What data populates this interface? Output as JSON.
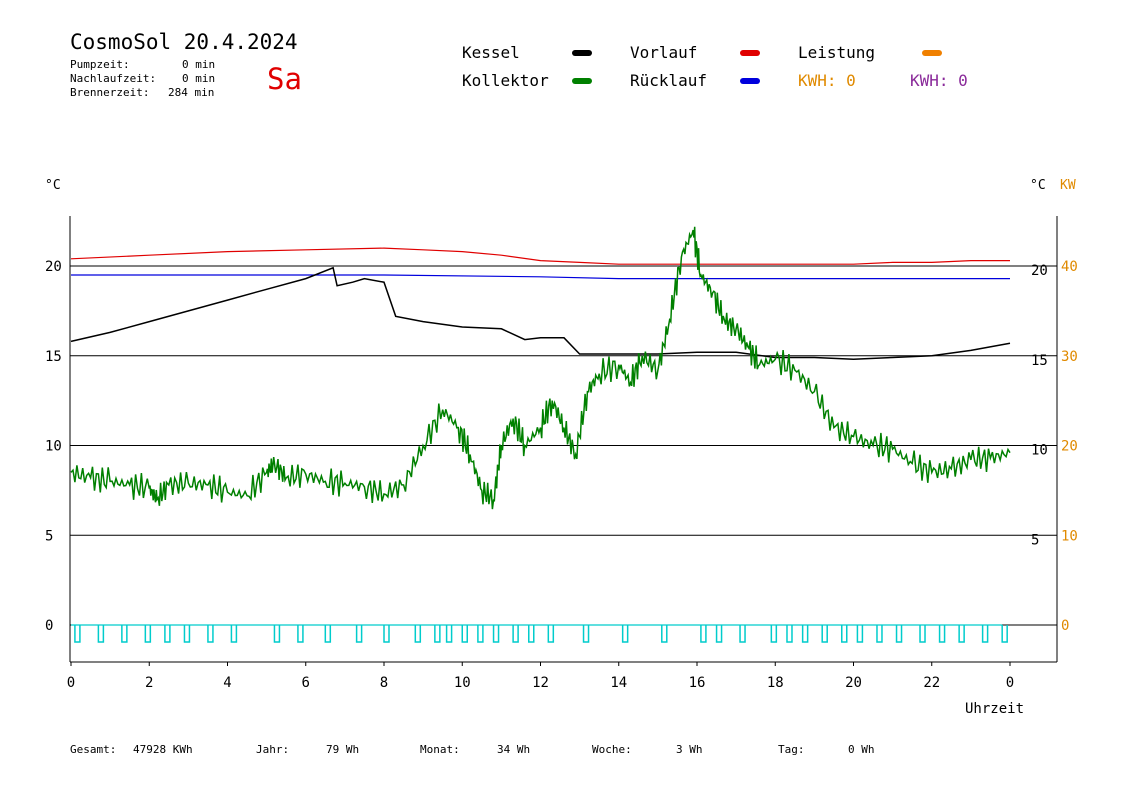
{
  "header": {
    "title": "CosmoSol 20.4.2024",
    "day": "Sa",
    "stats": [
      {
        "label": "Pumpzeit:",
        "value": "0 min"
      },
      {
        "label": "Nachlaufzeit:",
        "value": "0 min"
      },
      {
        "label": "Brennerzeit:",
        "value": "284 min"
      }
    ]
  },
  "legend": {
    "kessel": {
      "label": "Kessel",
      "color": "#000000"
    },
    "kollektor": {
      "label": "Kollektor",
      "color": "#008000"
    },
    "vorlauf": {
      "label": "Vorlauf",
      "color": "#e00000"
    },
    "ruecklauf": {
      "label": "Rücklauf",
      "color": "#0000dd"
    },
    "leistung": {
      "label": "Leistung",
      "color": "#f08000"
    },
    "kwh1": {
      "label": "KWH: 0",
      "color": "#e08a00"
    },
    "kwh2": {
      "label": "KWH: 0",
      "color": "#8a2a9a"
    }
  },
  "footer": {
    "items": [
      {
        "label": "Gesamt:",
        "value": "47928 KWh"
      },
      {
        "label": "Jahr:",
        "value": "79 Wh"
      },
      {
        "label": "Monat:",
        "value": "34 Wh"
      },
      {
        "label": "Woche:",
        "value": "3 Wh"
      },
      {
        "label": "Tag:",
        "value": "0 Wh"
      }
    ]
  },
  "chart_data": {
    "type": "line",
    "xlabel": "Uhrzeit",
    "x_ticks": [
      "0",
      "2",
      "4",
      "6",
      "8",
      "10",
      "12",
      "14",
      "16",
      "18",
      "20",
      "22",
      "0"
    ],
    "xlim": [
      0,
      24
    ],
    "left_axis": {
      "label": "°C",
      "ticks": [
        "20",
        "15",
        "10",
        "5",
        "0"
      ],
      "ylim": [
        -2,
        23
      ]
    },
    "right_axis_1": {
      "label": "°C",
      "ticks": [
        "20",
        "15",
        "10",
        "5"
      ]
    },
    "right_axis_2": {
      "label": "KW",
      "ticks": [
        "40",
        "30",
        "20",
        "10",
        "0"
      ],
      "color": "#e08a00"
    },
    "series": [
      {
        "name": "Vorlauf",
        "color": "#e00000",
        "x": [
          0,
          2,
          4,
          6,
          8,
          9,
          10,
          11,
          12,
          13,
          14,
          15,
          16,
          17,
          18,
          19,
          20,
          21,
          22,
          23,
          24
        ],
        "y": [
          20.4,
          20.6,
          20.8,
          20.9,
          21.0,
          20.9,
          20.8,
          20.6,
          20.3,
          20.2,
          20.1,
          20.1,
          20.1,
          20.1,
          20.1,
          20.1,
          20.1,
          20.2,
          20.2,
          20.3,
          20.3
        ]
      },
      {
        "name": "Rücklauf",
        "color": "#0000dd",
        "x": [
          0,
          4,
          8,
          12,
          14,
          16,
          20,
          24
        ],
        "y": [
          19.5,
          19.5,
          19.5,
          19.4,
          19.3,
          19.3,
          19.3,
          19.3
        ]
      },
      {
        "name": "Kessel",
        "color": "#000000",
        "x": [
          0,
          1,
          2,
          3,
          4,
          5,
          6,
          6.7,
          6.8,
          7.2,
          7.5,
          8.0,
          8.3,
          9.0,
          10.0,
          11.0,
          11.6,
          12.0,
          12.6,
          13.0,
          14.0,
          15.0,
          16.0,
          17.0,
          18.0,
          19.0,
          20.0,
          21.0,
          22.0,
          23.0,
          24.0
        ],
        "y": [
          15.8,
          16.3,
          16.9,
          17.5,
          18.1,
          18.7,
          19.3,
          19.9,
          18.9,
          19.1,
          19.3,
          19.1,
          17.2,
          16.9,
          16.6,
          16.5,
          15.9,
          16.0,
          16.0,
          15.1,
          15.1,
          15.1,
          15.2,
          15.2,
          14.9,
          14.9,
          14.8,
          14.9,
          15.0,
          15.3,
          15.7
        ]
      },
      {
        "name": "Kollektor",
        "color": "#008000",
        "x": [
          0,
          0.5,
          1,
          1.5,
          2,
          2.2,
          2.5,
          3,
          3.5,
          4,
          4.5,
          5,
          5.2,
          5.5,
          6,
          6.5,
          7,
          7.5,
          8,
          8.5,
          9,
          9.5,
          9.9,
          10.2,
          10.5,
          10.8,
          11.0,
          11.3,
          11.6,
          12.0,
          12.3,
          12.6,
          12.9,
          13.2,
          13.5,
          14.0,
          14.3,
          14.6,
          15.0,
          15.3,
          15.6,
          15.9,
          16.1,
          16.4,
          16.7,
          17.0,
          17.3,
          17.6,
          18.0,
          18.5,
          19.0,
          19.5,
          20.0,
          20.5,
          21.0,
          21.5,
          22.0,
          22.5,
          23.0,
          23.5,
          24.0
        ],
        "y": [
          8.5,
          8.2,
          8.0,
          7.8,
          7.6,
          7.0,
          7.8,
          7.9,
          7.8,
          7.4,
          7.2,
          8.5,
          9.0,
          8.2,
          8.4,
          8.0,
          7.9,
          7.7,
          7.3,
          7.8,
          10.0,
          12.0,
          11.0,
          9.5,
          7.5,
          7.0,
          10.0,
          11.5,
          10.0,
          11.0,
          12.5,
          11.0,
          9.5,
          13.0,
          14.0,
          14.5,
          13.5,
          15.0,
          14.2,
          17.0,
          20.5,
          22.0,
          19.5,
          18.5,
          17.0,
          16.5,
          15.5,
          14.5,
          14.8,
          14.2,
          13.0,
          11.0,
          10.5,
          10.0,
          9.8,
          9.0,
          8.5,
          8.7,
          9.2,
          9.3,
          9.6
        ]
      },
      {
        "name": "Leistung / Pumpe",
        "color": "#00cccc",
        "pulse_x": [
          0.1,
          0.7,
          1.3,
          1.9,
          2.4,
          2.9,
          3.5,
          4.1,
          5.2,
          5.8,
          6.5,
          7.3,
          8.0,
          8.8,
          9.3,
          9.6,
          10.0,
          10.4,
          10.8,
          11.3,
          11.7,
          12.2,
          13.1,
          14.1,
          15.1,
          16.1,
          16.5,
          17.1,
          17.9,
          18.3,
          18.7,
          19.2,
          19.7,
          20.1,
          20.6,
          21.1,
          21.7,
          22.2,
          22.7,
          23.3,
          23.8
        ],
        "pulse_low": 0,
        "pulse_high": -1
      }
    ]
  }
}
